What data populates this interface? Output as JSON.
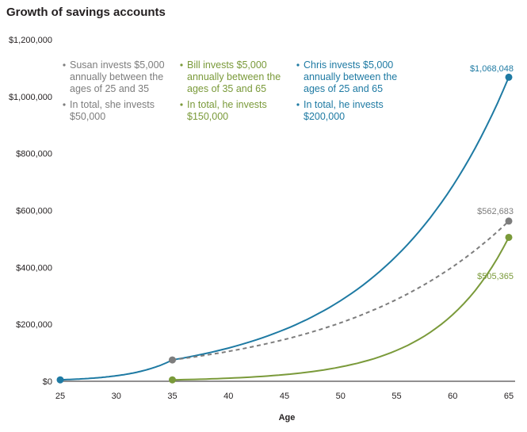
{
  "chart_data": {
    "type": "line",
    "title": "Growth of savings accounts",
    "xlabel": "Age",
    "ylabel": "",
    "xlim": [
      25,
      65
    ],
    "ylim": [
      0,
      1200000
    ],
    "x_ticks": [
      "25",
      "30",
      "35",
      "40",
      "45",
      "50",
      "55",
      "60",
      "65"
    ],
    "y_ticks": [
      "$1,200,000",
      "$1,000,000",
      "$800,000",
      "$600,000",
      "$400,000",
      "$200,000",
      "$0"
    ],
    "grid": false,
    "series": [
      {
        "color": "#1e7aa3",
        "style": "solid",
        "points": [
          [
            25,
            5000
          ],
          [
            35,
            75000
          ],
          [
            65,
            1068048
          ]
        ],
        "end_label": "$1,068,048",
        "annotation": [
          "Chris invests $5,000",
          "annually between the",
          "ages of 25 and 65",
          "In total, he invests",
          "$200,000"
        ]
      },
      {
        "color": "#7d7d7d",
        "style": "dashed",
        "points": [
          [
            35,
            75000
          ],
          [
            65,
            562683
          ]
        ],
        "end_label": "$562,683",
        "annotation": [
          "Susan invests $5,000",
          "annually between the",
          "ages of 25 and 35",
          "In total, she invests",
          "$50,000"
        ]
      },
      {
        "color": "#7a9a3a",
        "style": "solid",
        "points": [
          [
            35,
            5000
          ],
          [
            65,
            505365
          ]
        ],
        "end_label": "$505,365",
        "annotation": [
          "Bill invests $5,000",
          "annually between the",
          "ages of 35 and 65",
          "In total, he invests",
          "$150,000"
        ]
      }
    ]
  }
}
